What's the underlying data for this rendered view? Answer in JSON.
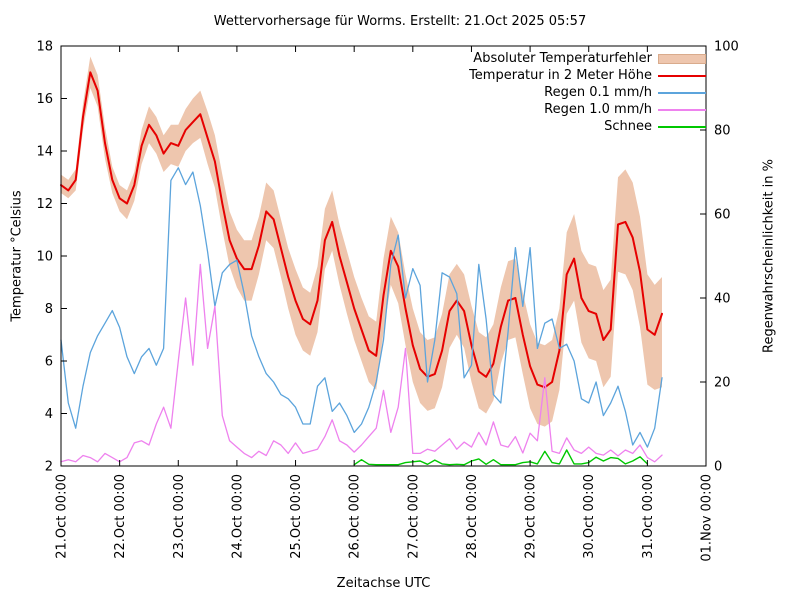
{
  "title": "Wettervorhersage für Worms. Erstellt: 21.Oct 2025 05:57",
  "axes": {
    "y_left": {
      "label": "Temperatur °Celsius",
      "min": 2,
      "max": 18,
      "ticks": [
        2,
        4,
        6,
        8,
        10,
        12,
        14,
        16,
        18
      ]
    },
    "y_right": {
      "label": "Regenwahrscheinlichkeit in %",
      "min": 0,
      "max": 100,
      "ticks": [
        0,
        20,
        40,
        60,
        80,
        100
      ]
    },
    "x": {
      "label": "Zeitachse UTC",
      "span_hours": 264,
      "tick_labels": [
        "21.Oct 00:00",
        "22.Oct 00:00",
        "23.Oct 00:00",
        "24.Oct 00:00",
        "25.Oct 00:00",
        "26.Oct 00:00",
        "27.Oct 00:00",
        "28.Oct 00:00",
        "29.Oct 00:00",
        "30.Oct 00:00",
        "31.Oct 00:00",
        "01.Nov 00:00"
      ]
    }
  },
  "legend": [
    {
      "label": "Absoluter Temperaturfehler"
    },
    {
      "label": "Temperatur in 2 Meter Höhe"
    },
    {
      "label": "Regen 0.1 mm/h"
    },
    {
      "label": "Regen 1.0 mm/h"
    },
    {
      "label": "Schnee"
    }
  ],
  "chart_data": {
    "type": "line",
    "title": "Wettervorhersage für Worms. Erstellt: 21.Oct 2025 05:57",
    "xlabel": "Zeitachse UTC",
    "ylabel_left": "Temperatur °Celsius",
    "ylabel_right": "Regenwahrscheinlichkeit in %",
    "ylim_left": [
      2,
      18
    ],
    "ylim_right": [
      0,
      100
    ],
    "x_hours_start": 0,
    "x_hours_step": 3,
    "series": [
      {
        "name": "Absoluter Temperaturfehler",
        "kind": "band",
        "axis": "left",
        "fill": "#eec6ae",
        "edge": "#d9ab8c",
        "upper": [
          13.1,
          12.9,
          13.3,
          15.8,
          17.6,
          16.9,
          14.9,
          13.4,
          12.7,
          12.5,
          13.2,
          14.8,
          15.7,
          15.3,
          14.6,
          15.0,
          15.0,
          15.6,
          16.0,
          16.3,
          15.5,
          14.6,
          13.1,
          11.7,
          11.0,
          10.6,
          10.6,
          11.5,
          12.8,
          12.5,
          11.4,
          10.3,
          9.5,
          8.8,
          8.6,
          9.6,
          11.8,
          12.5,
          11.2,
          10.2,
          9.2,
          8.4,
          7.7,
          7.5,
          9.9,
          11.5,
          10.9,
          9.3,
          8.0,
          7.1,
          6.8,
          6.9,
          7.8,
          9.3,
          9.7,
          9.3,
          8.1,
          7.1,
          6.9,
          7.4,
          8.8,
          9.8,
          9.9,
          8.6,
          7.4,
          6.7,
          6.6,
          6.8,
          8.0,
          10.9,
          11.6,
          10.2,
          9.7,
          9.6,
          8.7,
          9.1,
          13.0,
          13.3,
          12.8,
          11.5,
          9.3,
          8.9,
          9.2
        ],
        "lower": [
          12.4,
          12.2,
          12.5,
          14.8,
          16.4,
          15.7,
          13.7,
          12.4,
          11.7,
          11.4,
          12.1,
          13.5,
          14.3,
          13.9,
          13.2,
          13.5,
          13.4,
          14.0,
          14.3,
          14.5,
          13.5,
          12.6,
          11.0,
          9.6,
          8.8,
          8.3,
          8.3,
          9.3,
          10.6,
          10.3,
          9.2,
          8.0,
          7.0,
          6.4,
          6.2,
          7.1,
          9.5,
          10.2,
          8.9,
          7.8,
          6.8,
          6.0,
          5.2,
          4.9,
          7.1,
          8.9,
          8.2,
          6.6,
          5.2,
          4.4,
          4.1,
          4.2,
          5.0,
          6.5,
          7.0,
          6.5,
          5.2,
          4.2,
          4.0,
          4.5,
          5.9,
          6.8,
          6.9,
          5.5,
          4.2,
          3.6,
          3.5,
          3.7,
          4.9,
          7.8,
          8.3,
          6.7,
          6.1,
          6.0,
          5.0,
          5.4,
          9.4,
          9.3,
          8.7,
          7.3,
          5.1,
          4.9,
          5.0
        ]
      },
      {
        "name": "Temperatur in 2 Meter Höhe",
        "kind": "line",
        "axis": "left",
        "color": "#e60000",
        "width": 2,
        "values": [
          12.7,
          12.5,
          12.9,
          15.3,
          17.0,
          16.3,
          14.3,
          12.9,
          12.2,
          12.0,
          12.7,
          14.2,
          15.0,
          14.6,
          13.9,
          14.3,
          14.2,
          14.8,
          15.1,
          15.4,
          14.5,
          13.6,
          12.0,
          10.6,
          9.9,
          9.5,
          9.5,
          10.4,
          11.7,
          11.4,
          10.3,
          9.2,
          8.3,
          7.6,
          7.4,
          8.3,
          10.6,
          11.3,
          10.0,
          9.0,
          8.0,
          7.2,
          6.4,
          6.2,
          8.5,
          10.2,
          9.6,
          8.0,
          6.6,
          5.7,
          5.4,
          5.5,
          6.4,
          7.9,
          8.3,
          7.9,
          6.6,
          5.6,
          5.4,
          5.9,
          7.3,
          8.3,
          8.4,
          7.0,
          5.8,
          5.1,
          5.0,
          5.2,
          6.4,
          9.3,
          9.9,
          8.4,
          7.9,
          7.8,
          6.8,
          7.2,
          11.2,
          11.3,
          10.7,
          9.4,
          7.2,
          7.0,
          7.8
        ]
      },
      {
        "name": "Regen 0.1 mm/h",
        "kind": "line",
        "axis": "right",
        "color": "#5ca4dc",
        "width": 1.3,
        "values": [
          30,
          15,
          9,
          19,
          27,
          31,
          34,
          37,
          33,
          26,
          22,
          26,
          28,
          24,
          28,
          68,
          71,
          67,
          70,
          62,
          51,
          38,
          46,
          48,
          49,
          41,
          31,
          26,
          22,
          20,
          17,
          16,
          14,
          10,
          10,
          19,
          21,
          13,
          15,
          12,
          8,
          10,
          14,
          20,
          30,
          48,
          55,
          40,
          47,
          43,
          20,
          30,
          46,
          45,
          41,
          21,
          24,
          48,
          35,
          17,
          15,
          32,
          52,
          38,
          52,
          28,
          34,
          35,
          28,
          29,
          25,
          16,
          15,
          20,
          12,
          15,
          19,
          13,
          5,
          8,
          4.5,
          9,
          21
        ]
      },
      {
        "name": "Regen 1.0 mm/h",
        "kind": "line",
        "axis": "right",
        "color": "#ee82ee",
        "width": 1.3,
        "values": [
          1,
          1.5,
          1,
          2.5,
          2,
          1,
          3,
          2,
          1,
          2,
          5.5,
          6,
          5,
          10,
          14,
          9,
          25,
          40,
          24,
          48,
          28,
          38,
          12,
          6,
          4.5,
          3,
          2,
          3.5,
          2.5,
          6,
          5,
          3,
          5.5,
          3,
          3.5,
          4,
          7,
          11,
          6,
          5,
          3.3,
          5,
          7,
          9,
          18,
          8,
          14,
          28,
          3,
          3,
          4,
          3.5,
          5,
          6.5,
          4,
          5.7,
          4.5,
          8,
          5,
          10.5,
          5,
          4.5,
          7,
          3.1,
          7.8,
          6,
          21,
          3.5,
          3,
          6.7,
          3.8,
          3,
          4.5,
          3,
          2.6,
          3.8,
          2.4,
          3.8,
          3,
          5,
          2,
          1,
          2.6
        ]
      },
      {
        "name": "Schnee",
        "kind": "line",
        "axis": "right",
        "color": "#00c800",
        "width": 1.4,
        "x_hours_start": 120,
        "x_hours_step": 3,
        "values": [
          0.3,
          1.5,
          0.4,
          0.3,
          0.3,
          0.3,
          0.3,
          0.8,
          1.0,
          1.2,
          0.4,
          1.4,
          0.5,
          0.3,
          0.4,
          0.3,
          1.2,
          1.7,
          0.4,
          1.5,
          0.3,
          0.3,
          0.3,
          0.8,
          1.0,
          0.5,
          3.5,
          0.8,
          0.5,
          3.8,
          0.5,
          0.5,
          0.8,
          2.1,
          1.2,
          2.0,
          1.8,
          0.5,
          1.2,
          2.2,
          0.5
        ]
      }
    ]
  }
}
